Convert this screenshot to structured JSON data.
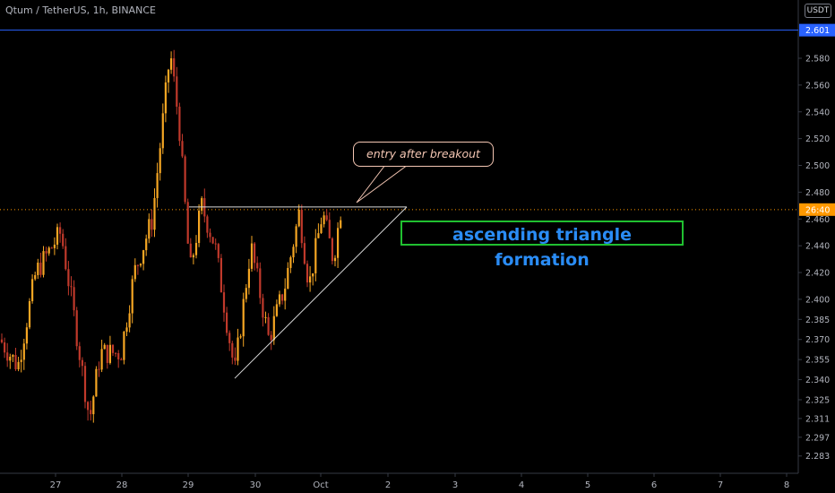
{
  "header": {
    "symbol_title": "Qtum / TetherUS, 1h, BINANCE",
    "currency_badge": "USDT"
  },
  "annotations": {
    "callout_text": "entry after breakout",
    "pattern_label": "ascending triangle formation"
  },
  "colors": {
    "background": "#000000",
    "candle_up": "#f5a623",
    "candle_down": "#c0392b",
    "resistance_line": "#2962ff",
    "price_line": "#ff9800",
    "callout": "#f4c6b3",
    "pattern_label_text": "#2a8cf5",
    "pattern_label_border": "#20c030"
  },
  "chart_data": {
    "type": "candlestick",
    "symbol": "Qtum / TetherUS",
    "interval": "1h",
    "exchange": "BINANCE",
    "y_axis": {
      "ticks": [
        "2.283",
        "2.297",
        "2.311",
        "2.325",
        "2.340",
        "2.355",
        "2.370",
        "2.385",
        "2.400",
        "2.420",
        "2.440",
        "2.460",
        "2.480",
        "2.500",
        "2.520",
        "2.540",
        "2.560",
        "2.580"
      ],
      "range": [
        2.277,
        2.614
      ]
    },
    "x_axis": {
      "ticks": [
        "27",
        "28",
        "29",
        "30",
        "Oct",
        "2",
        "3",
        "4",
        "5",
        "6",
        "7",
        "8"
      ]
    },
    "price_markers": [
      {
        "label": "2.601",
        "value": 2.601,
        "color": "#2962ff",
        "style": "solid"
      },
      {
        "label": "26:40",
        "value": 2.467,
        "color": "#ff9800",
        "style": "dotted"
      }
    ],
    "triangle": {
      "resistance": 2.469,
      "support_start": 2.341,
      "support_end": 2.469
    },
    "candles_summary": {
      "start_close": 2.37,
      "low": 2.31,
      "high": 2.59,
      "last_close": 2.47
    }
  }
}
